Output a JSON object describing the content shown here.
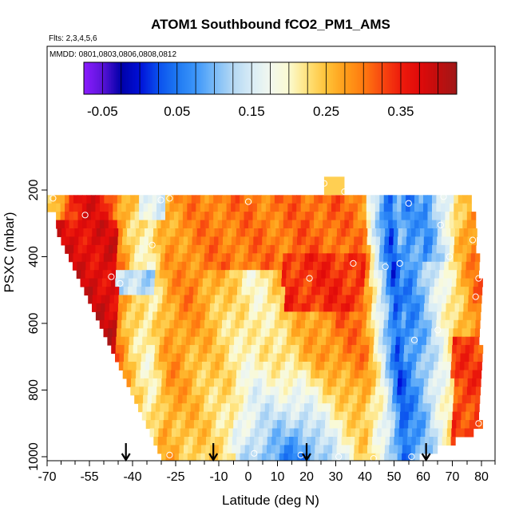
{
  "chart_data": {
    "type": "heatmap",
    "title": "ATOM1 Southbound fCO2_PM1_AMS",
    "subtitle_flights": "Flts: 2,3,4,5,6",
    "subtitle_dates": "MMDD: 0801,0803,0806,0808,0812",
    "xlabel": "Latitude (deg N)",
    "ylabel": "PSXC (mbar)",
    "xlim": [
      -70,
      80
    ],
    "ylim": [
      1000,
      0
    ],
    "x_ticks": [
      -70,
      -55,
      -40,
      -25,
      -10,
      0,
      10,
      20,
      30,
      40,
      50,
      60,
      70,
      80
    ],
    "x_tick_labels": [
      "-70",
      "-55",
      "-40",
      "-25",
      "-10",
      "0",
      "10",
      "20",
      "30",
      "40",
      "50",
      "60",
      "70",
      "80"
    ],
    "x_minor_ticks": [
      -65,
      -60,
      -50,
      -45,
      -35,
      -30,
      -20,
      -15,
      -5,
      5,
      15,
      25,
      35,
      45,
      55,
      65,
      75
    ],
    "y_ticks": [
      200,
      400,
      600,
      800,
      1000
    ],
    "y_tick_labels": [
      "200",
      "400",
      "600",
      "800",
      "1000"
    ],
    "colorbar": {
      "range": [
        -0.075,
        0.425
      ],
      "ticks": [
        -0.05,
        0.05,
        0.15,
        0.25,
        0.35
      ],
      "tick_labels": [
        "-0.05",
        "0.05",
        "0.15",
        "0.25",
        "0.35"
      ],
      "stops": [
        {
          "v": -0.075,
          "c": "#8b1cff"
        },
        {
          "v": -0.05,
          "c": "#5a14d8"
        },
        {
          "v": -0.025,
          "c": "#0000a8"
        },
        {
          "v": 0.0,
          "c": "#0010d8"
        },
        {
          "v": 0.025,
          "c": "#0a50ee"
        },
        {
          "v": 0.05,
          "c": "#1e78f2"
        },
        {
          "v": 0.075,
          "c": "#3c96fa"
        },
        {
          "v": 0.1,
          "c": "#78baf8"
        },
        {
          "v": 0.125,
          "c": "#b4d8f4"
        },
        {
          "v": 0.15,
          "c": "#d8ecf6"
        },
        {
          "v": 0.175,
          "c": "#f2f8ee"
        },
        {
          "v": 0.2,
          "c": "#fbfad0"
        },
        {
          "v": 0.225,
          "c": "#ffe27a"
        },
        {
          "v": 0.25,
          "c": "#ffc238"
        },
        {
          "v": 0.275,
          "c": "#ff9e1a"
        },
        {
          "v": 0.3,
          "c": "#ff7a10"
        },
        {
          "v": 0.325,
          "c": "#f84810"
        },
        {
          "v": 0.35,
          "c": "#ee1c0c"
        },
        {
          "v": 0.375,
          "c": "#e00a0a"
        },
        {
          "v": 0.4,
          "c": "#c00e0e"
        },
        {
          "v": 0.425,
          "c": "#a01818"
        }
      ]
    },
    "field": {
      "description": "fCO2 anomaly vs latitude and pressure (approximate reconstruction)",
      "band_top_mbar": 215,
      "band_height_mbar": 50,
      "latitude_bands": [
        {
          "lat": -68,
          "value": 0.22
        },
        {
          "lat": -62,
          "value": 0.33
        },
        {
          "lat": -57,
          "value": 0.37
        },
        {
          "lat": -50,
          "value": 0.36
        },
        {
          "lat": -45,
          "value": 0.3
        },
        {
          "lat": -40,
          "value": 0.24
        },
        {
          "lat": -34,
          "value": 0.2
        },
        {
          "lat": -28,
          "value": 0.27
        },
        {
          "lat": -20,
          "value": 0.29
        },
        {
          "lat": -10,
          "value": 0.3
        },
        {
          "lat": 0,
          "value": 0.3
        },
        {
          "lat": 10,
          "value": 0.3
        },
        {
          "lat": 20,
          "value": 0.31
        },
        {
          "lat": 30,
          "value": 0.31
        },
        {
          "lat": 40,
          "value": 0.29
        },
        {
          "lat": 45,
          "value": 0.2
        },
        {
          "lat": 50,
          "value": 0.12
        },
        {
          "lat": 55,
          "value": 0.06
        },
        {
          "lat": 60,
          "value": 0.1
        },
        {
          "lat": 70,
          "value": 0.22
        },
        {
          "lat": 78,
          "value": 0.3
        }
      ]
    },
    "top_patch": {
      "lat_min": 26,
      "lat_max": 33,
      "psxc_min": 160,
      "psxc_max": 215,
      "value": 0.24
    },
    "markers": [
      {
        "lat": -67,
        "psxc": 225
      },
      {
        "lat": -56,
        "psxc": 275
      },
      {
        "lat": -30,
        "psxc": 230
      },
      {
        "lat": -27,
        "psxc": 225
      },
      {
        "lat": -33,
        "psxc": 365
      },
      {
        "lat": -47,
        "psxc": 460
      },
      {
        "lat": -44,
        "psxc": 480
      },
      {
        "lat": 0,
        "psxc": 235
      },
      {
        "lat": 26,
        "psxc": 180
      },
      {
        "lat": 33,
        "psxc": 205
      },
      {
        "lat": 55,
        "psxc": 240
      },
      {
        "lat": 67,
        "psxc": 220
      },
      {
        "lat": 66,
        "psxc": 305
      },
      {
        "lat": 77,
        "psxc": 350
      },
      {
        "lat": 69,
        "psxc": 400
      },
      {
        "lat": 36,
        "psxc": 420
      },
      {
        "lat": 47,
        "psxc": 430
      },
      {
        "lat": 52,
        "psxc": 420
      },
      {
        "lat": 21,
        "psxc": 465
      },
      {
        "lat": 79,
        "psxc": 465
      },
      {
        "lat": 78,
        "psxc": 520
      },
      {
        "lat": 65,
        "psxc": 620
      },
      {
        "lat": 57,
        "psxc": 650
      },
      {
        "lat": -55,
        "psxc": 785
      },
      {
        "lat": 79,
        "psxc": 900
      },
      {
        "lat": -27,
        "psxc": 995
      },
      {
        "lat": 2,
        "psxc": 990
      },
      {
        "lat": 18,
        "psxc": 995
      },
      {
        "lat": 31,
        "psxc": 1000
      },
      {
        "lat": 43,
        "psxc": 1005
      },
      {
        "lat": 56,
        "psxc": 1000
      }
    ],
    "arrows_latitude": [
      -42,
      -12,
      20,
      61
    ]
  }
}
